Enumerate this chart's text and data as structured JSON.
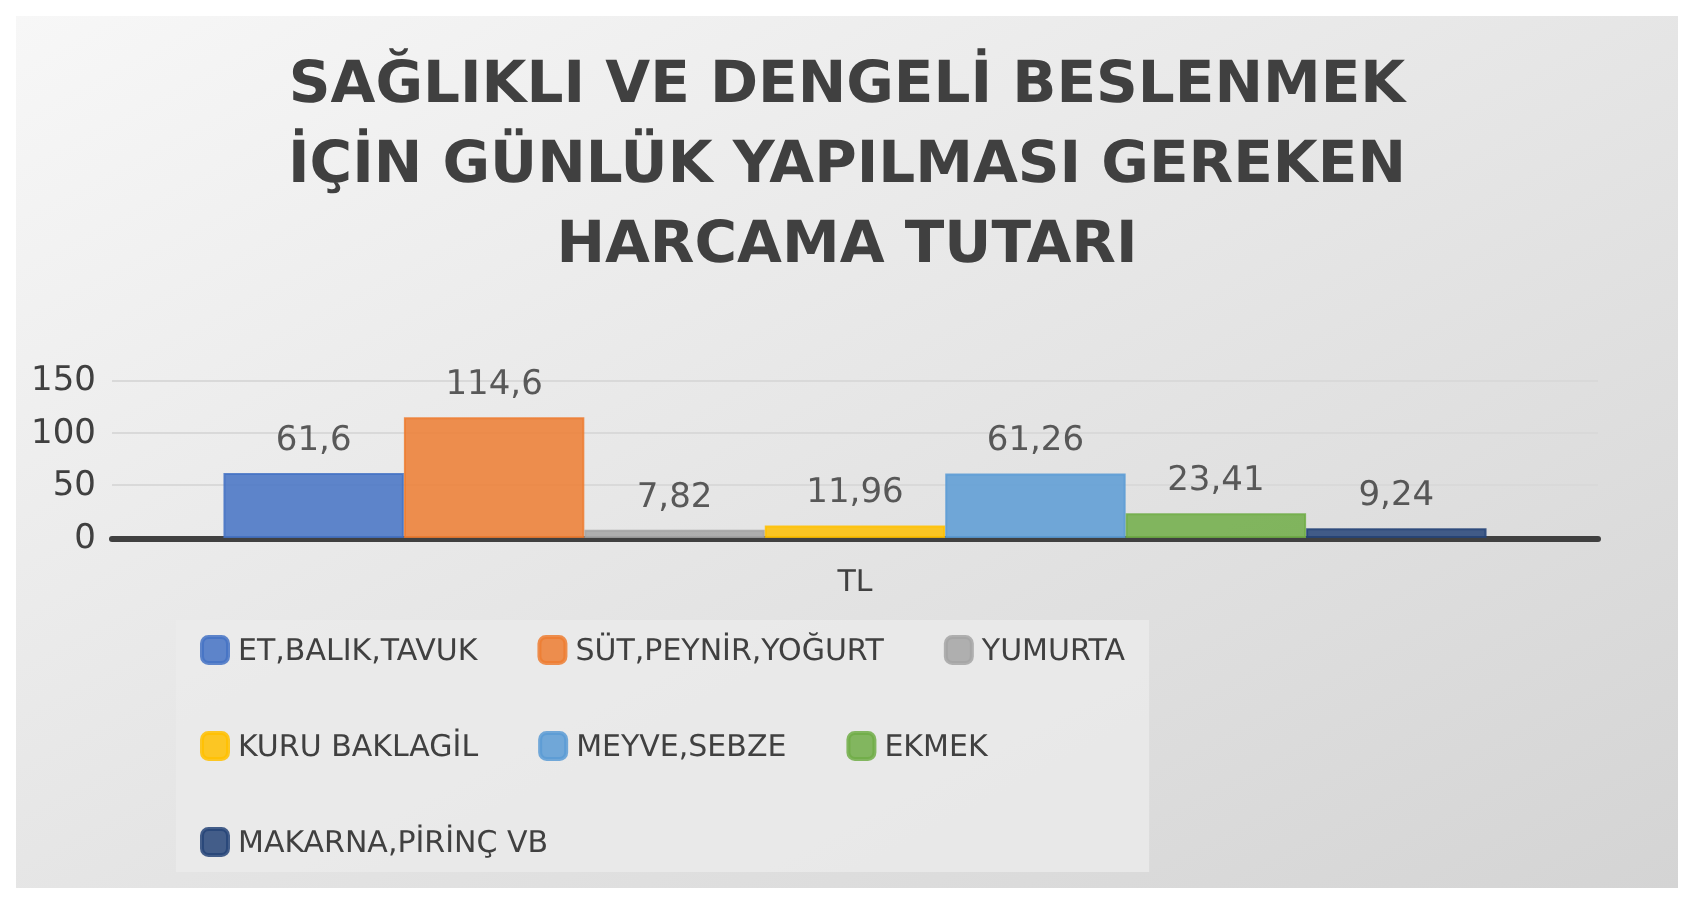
{
  "chart_data": {
    "type": "bar",
    "title": "SAĞLIKLI VE DENGELİ BESLENMEK\nİÇİN GÜNLÜK YAPILMASI GEREKEN\nHARCAMA TUTARI",
    "categories": [
      "TL"
    ],
    "series": [
      {
        "name": "ET,BALIK,TAVUK",
        "color": "#4472c4",
        "values": [
          61.6
        ],
        "value_labels": [
          "61,6"
        ]
      },
      {
        "name": "SÜT,PEYNİR,YOĞURT",
        "color": "#ed7d31",
        "values": [
          114.6
        ],
        "value_labels": [
          "114,6"
        ]
      },
      {
        "name": "YUMURTA",
        "color": "#a5a5a5",
        "values": [
          7.82
        ],
        "value_labels": [
          "7,82"
        ]
      },
      {
        "name": "KURU BAKLAGİL",
        "color": "#ffc000",
        "values": [
          11.96
        ],
        "value_labels": [
          "11,96"
        ]
      },
      {
        "name": "MEYVE,SEBZE",
        "color": "#5b9bd5",
        "values": [
          61.26
        ],
        "value_labels": [
          "61,26"
        ]
      },
      {
        "name": "EKMEK",
        "color": "#70ad47",
        "values": [
          23.41
        ],
        "value_labels": [
          "23,41"
        ]
      },
      {
        "name": "MAKARNA,PİRİNÇ VB",
        "color": "#264478",
        "values": [
          9.24
        ],
        "value_labels": [
          "9,24"
        ]
      }
    ],
    "ylim": [
      0,
      150
    ],
    "yticks": [
      0,
      50,
      100,
      150
    ],
    "grid": "y",
    "legend": "bottom"
  }
}
